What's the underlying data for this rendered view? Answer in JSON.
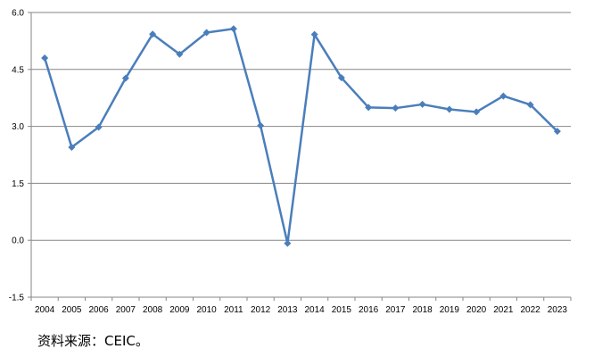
{
  "chart_data": {
    "type": "line",
    "categories": [
      "2004",
      "2005",
      "2006",
      "2007",
      "2008",
      "2009",
      "2010",
      "2011",
      "2012",
      "2013",
      "2014",
      "2015",
      "2016",
      "2017",
      "2018",
      "2019",
      "2020",
      "2021",
      "2022",
      "2023"
    ],
    "series": [
      {
        "values": [
          4.8,
          2.45,
          2.98,
          4.27,
          5.43,
          4.9,
          5.47,
          5.57,
          3.02,
          -0.08,
          5.42,
          4.28,
          3.5,
          3.48,
          3.58,
          3.45,
          3.38,
          3.8,
          3.57,
          2.87
        ],
        "color": "#4a7ebb"
      }
    ],
    "y_ticks": [
      "6.0",
      "4.5",
      "3.0",
      "1.5",
      "0.0",
      "-1.5"
    ],
    "ylim": [
      -1.5,
      6.0
    ],
    "grid": true,
    "title": "",
    "xlabel": "",
    "ylabel": ""
  },
  "source_text": "资料来源：CEIC。",
  "colors": {
    "series": "#4a7ebb",
    "grid": "#868686",
    "axis": "#868686"
  }
}
